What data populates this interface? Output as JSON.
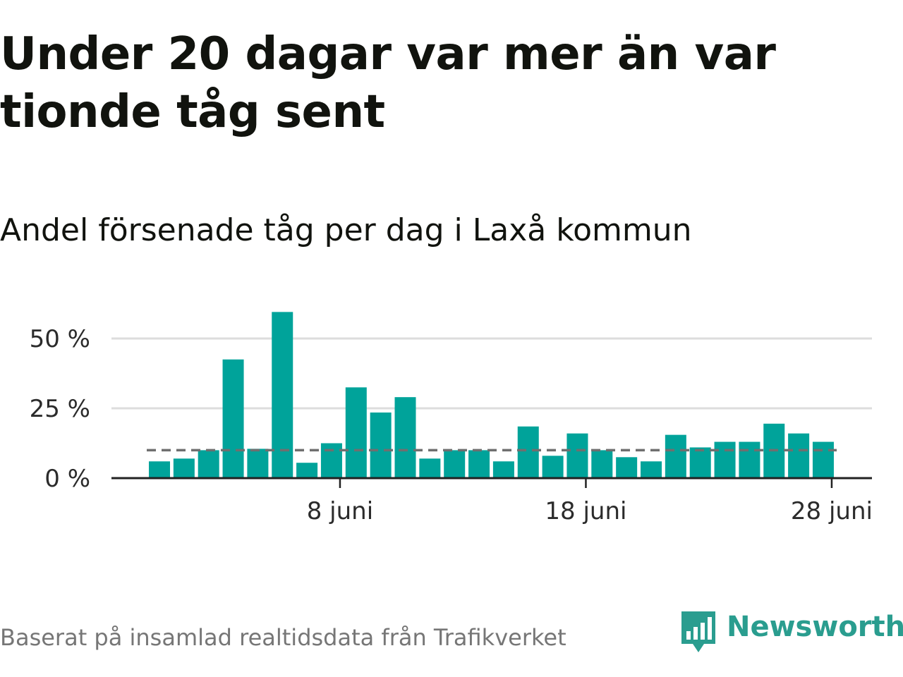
{
  "title": "Under 20 dagar var mer än var tionde tåg sent",
  "subtitle": "Andel försenade tåg per dag i Laxå kommun",
  "source": "Baserat på insamlad realtidsdata från Trafikverket",
  "brand": {
    "name": "Newsworthy",
    "icon": "newsworthy-logo-icon",
    "color": "#2a9d8f"
  },
  "colors": {
    "bar": "#00a39a",
    "grid": "#dddddd",
    "axis": "#222222",
    "reference_line": "#6f6f6f"
  },
  "chart_data": {
    "type": "bar",
    "unit": "%",
    "x_start_day": 1,
    "month_label": "juni",
    "categories": [
      "1 juni",
      "2 juni",
      "3 juni",
      "4 juni",
      "5 juni",
      "6 juni",
      "7 juni",
      "8 juni",
      "9 juni",
      "10 juni",
      "11 juni",
      "12 juni",
      "13 juni",
      "14 juni",
      "15 juni",
      "16 juni",
      "17 juni",
      "18 juni",
      "19 juni",
      "20 juni",
      "21 juni",
      "22 juni",
      "23 juni",
      "24 juni",
      "25 juni",
      "26 juni",
      "27 juni",
      "28 juni"
    ],
    "values": [
      6,
      7,
      10,
      42.5,
      10.5,
      59.5,
      5.5,
      12.5,
      32.5,
      23.5,
      29,
      7,
      10,
      10,
      6,
      18.5,
      8,
      16,
      10,
      7.5,
      6,
      15.5,
      11,
      13,
      13,
      19.5,
      16,
      13
    ],
    "reference_line": 10,
    "ylim": [
      0,
      60
    ],
    "yticks": [
      0,
      25,
      50
    ],
    "ytick_labels": [
      "0 %",
      "25 %",
      "50 %"
    ],
    "xticks": [
      "8 juni",
      "18 juni",
      "28 juni"
    ],
    "grid": true,
    "legend": "none"
  }
}
